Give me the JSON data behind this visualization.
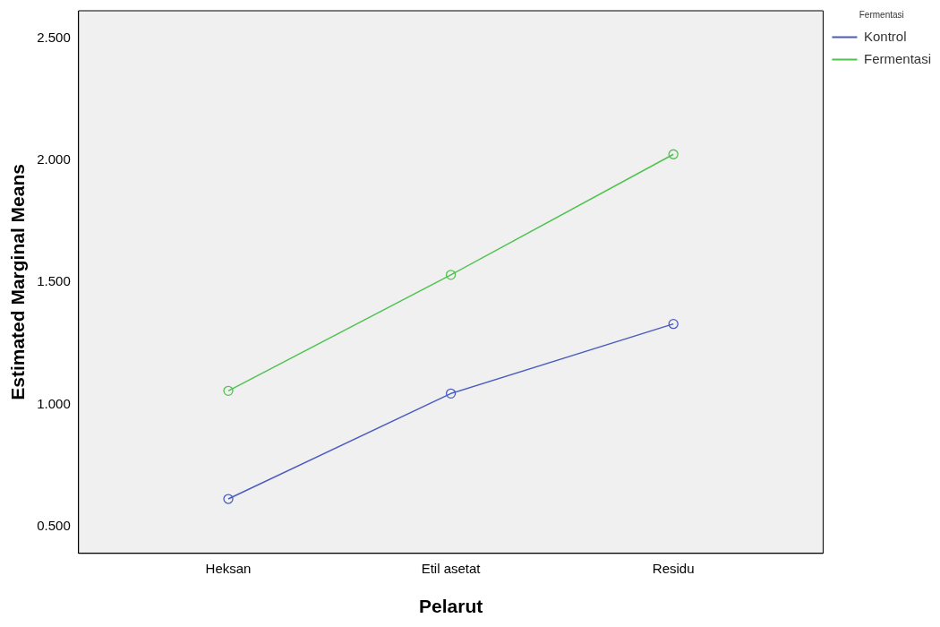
{
  "chart_data": {
    "type": "line",
    "xlabel": "Pelarut",
    "ylabel": "Estimated Marginal Means",
    "legend_title": "Fermentasi",
    "categories": [
      "Heksan",
      "Etil asetat",
      "Residu"
    ],
    "series": [
      {
        "name": "Kontrol",
        "color": "#4a5bbf",
        "values": [
          0.613,
          1.045,
          1.33
        ]
      },
      {
        "name": "Fermentasi",
        "color": "#4fc24f",
        "values": [
          1.056,
          1.531,
          2.025
        ]
      }
    ],
    "ylim": [
      0.39,
      2.613
    ],
    "yticks": [
      {
        "value": 0.5,
        "label": "0.500"
      },
      {
        "value": 1,
        "label": "1.000"
      },
      {
        "value": 1.5,
        "label": "1.500"
      },
      {
        "value": 2,
        "label": "2.000"
      },
      {
        "value": 2.5,
        "label": "2.500"
      }
    ],
    "grid": false,
    "legend": "top right",
    "marker": "circle",
    "line_style": "solid"
  }
}
